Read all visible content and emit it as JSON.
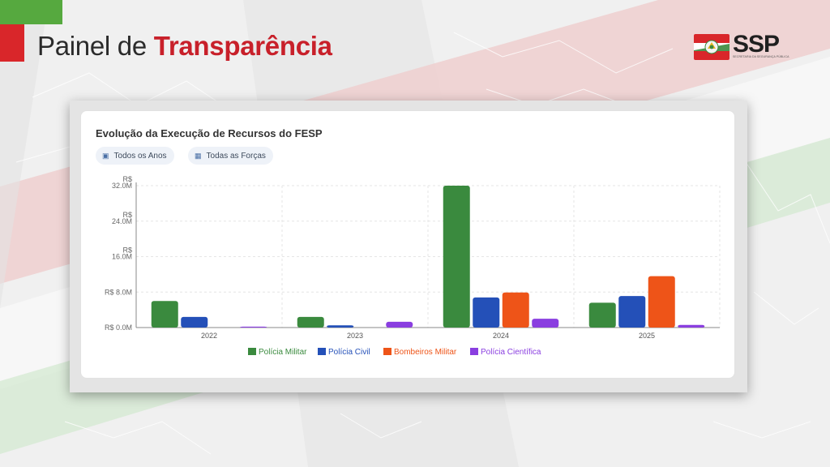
{
  "header": {
    "title_prefix": "Painel de",
    "title_accent": "Transparência"
  },
  "logo": {
    "text": "SSP",
    "subtitle": "SECRETARIA DA SEGURANÇA PÚBLICA"
  },
  "colors": {
    "brand_green": "#56a93f",
    "brand_red": "#d9262a"
  },
  "card": {
    "title": "Evolução da Execução de Recursos do FESP",
    "filters": {
      "years": {
        "icon": "calendar-icon",
        "label": "Todos os Anos"
      },
      "forces": {
        "icon": "building-icon",
        "label": "Todas as Forças"
      }
    }
  },
  "chart_data": {
    "type": "bar",
    "title": "Evolução da Execução de Recursos do FESP",
    "categories": [
      "2022",
      "2023",
      "2024",
      "2025"
    ],
    "series": [
      {
        "name": "Polícia Militar",
        "color": "#3a8a3e",
        "values": [
          6.0,
          2.4,
          32.0,
          5.6
        ]
      },
      {
        "name": "Polícia Civil",
        "color": "#2450b8",
        "values": [
          2.4,
          0.5,
          6.8,
          7.1
        ]
      },
      {
        "name": "Bombeiros Militar",
        "color": "#ee5418",
        "values": [
          0,
          0,
          7.9,
          11.6
        ]
      },
      {
        "name": "Polícia Científica",
        "color": "#8a3ee0",
        "values": [
          0.2,
          1.3,
          2.0,
          0.6
        ]
      }
    ],
    "ylim": [
      0,
      32
    ],
    "yticks": [
      {
        "value": 0,
        "label": "R$ 0.0M"
      },
      {
        "value": 8,
        "label": "R$ 8.0M"
      },
      {
        "value": 16,
        "label": "R$ 16.0M"
      },
      {
        "value": 24,
        "label": "R$ 24.0M"
      },
      {
        "value": 32,
        "label": "R$ 32.0M"
      }
    ],
    "xlabel": "",
    "ylabel": "",
    "grid": true,
    "legend": "bottom"
  }
}
